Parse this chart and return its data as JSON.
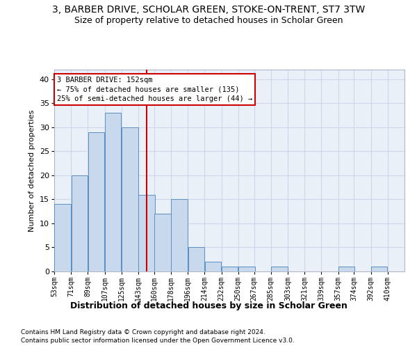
{
  "title": "3, BARBER DRIVE, SCHOLAR GREEN, STOKE-ON-TRENT, ST7 3TW",
  "subtitle": "Size of property relative to detached houses in Scholar Green",
  "xlabel": "Distribution of detached houses by size in Scholar Green",
  "ylabel": "Number of detached properties",
  "footnote1": "Contains HM Land Registry data © Crown copyright and database right 2024.",
  "footnote2": "Contains public sector information licensed under the Open Government Licence v3.0.",
  "annotation_line1": "3 BARBER DRIVE: 152sqm",
  "annotation_line2": "← 75% of detached houses are smaller (135)",
  "annotation_line3": "25% of semi-detached houses are larger (44) →",
  "bar_color": "#c9d9ed",
  "bar_edge_color": "#5a8fc0",
  "vline_x": 152,
  "vline_color": "#cc0000",
  "bins_left": [
    53,
    71,
    89,
    107,
    125,
    143,
    160,
    178,
    196,
    214,
    232,
    250,
    267,
    285,
    303,
    321,
    339,
    357,
    374,
    392
  ],
  "bin_width": 18,
  "bar_heights": [
    14,
    20,
    29,
    33,
    30,
    16,
    12,
    15,
    5,
    2,
    1,
    1,
    0,
    1,
    0,
    0,
    0,
    1,
    0,
    1
  ],
  "xtick_labels": [
    "53sqm",
    "71sqm",
    "89sqm",
    "107sqm",
    "125sqm",
    "143sqm",
    "160sqm",
    "178sqm",
    "196sqm",
    "214sqm",
    "232sqm",
    "250sqm",
    "267sqm",
    "285sqm",
    "303sqm",
    "321sqm",
    "339sqm",
    "357sqm",
    "374sqm",
    "392sqm",
    "410sqm"
  ],
  "xlim_min": 53,
  "xlim_max": 428,
  "ylim": [
    0,
    42
  ],
  "yticks": [
    0,
    5,
    10,
    15,
    20,
    25,
    30,
    35,
    40
  ],
  "grid_color": "#d0d8e8",
  "bg_color": "#eaf0f8",
  "title_fontsize": 10,
  "subtitle_fontsize": 9,
  "ylabel_fontsize": 8,
  "xlabel_fontsize": 9,
  "tick_fontsize": 7,
  "footnote_fontsize": 6.5,
  "annotation_fontsize": 7.5
}
